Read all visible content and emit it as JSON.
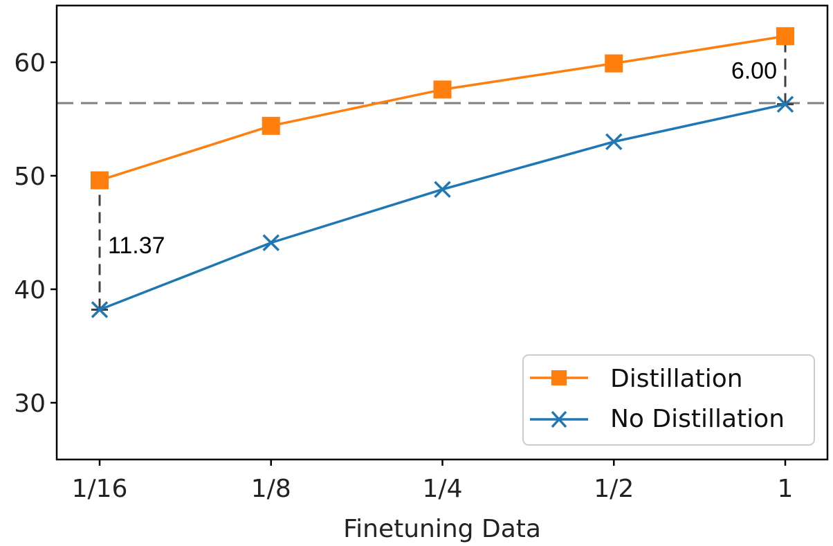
{
  "chart_data": {
    "type": "line",
    "title": "",
    "xlabel": "Finetuning Data",
    "ylabel": "",
    "categories": [
      "1/16",
      "1/8",
      "1/4",
      "1/2",
      "1"
    ],
    "ylim": [
      25,
      65
    ],
    "yticks": [
      30,
      40,
      50,
      60
    ],
    "grid": false,
    "legend_position": "lower-right",
    "series": [
      {
        "name": "Distillation",
        "color": "#ff7f0e",
        "marker": "square",
        "values": [
          49.6,
          54.4,
          57.6,
          59.9,
          62.3
        ]
      },
      {
        "name": "No Distillation",
        "color": "#1f77b4",
        "marker": "x",
        "values": [
          38.2,
          44.1,
          48.8,
          53.0,
          56.3
        ]
      }
    ],
    "reference_line": {
      "y": 56.4,
      "style": "dashed",
      "color": "#7f7f7f"
    },
    "annotations": [
      {
        "label": "11.37",
        "category": "1/16",
        "from": 38.2,
        "to": 49.6
      },
      {
        "label": "6.00",
        "category": "1",
        "from": 56.3,
        "to": 62.3
      }
    ]
  }
}
